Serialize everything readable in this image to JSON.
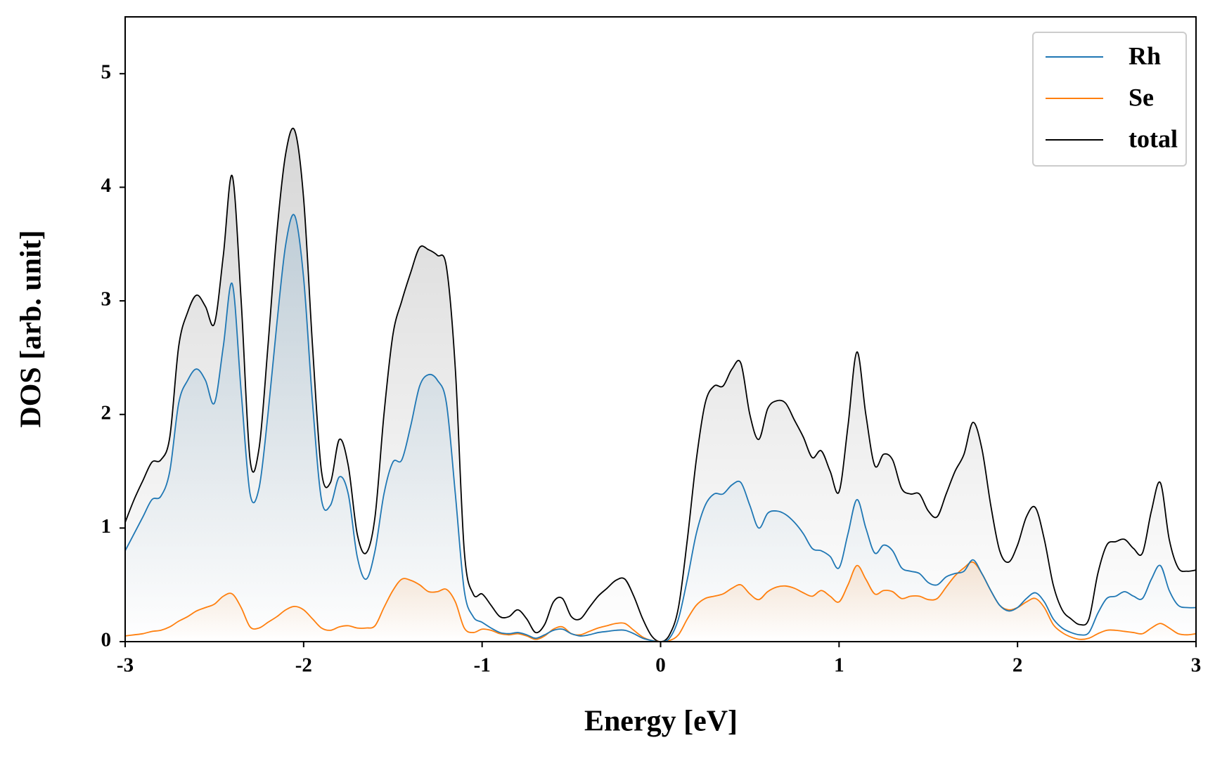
{
  "chart_data": {
    "type": "line",
    "xlabel": "Energy [eV]",
    "ylabel": "DOS [arb. unit]",
    "x": [
      -3.0,
      -2.95,
      -2.9,
      -2.85,
      -2.8,
      -2.75,
      -2.7,
      -2.65,
      -2.6,
      -2.55,
      -2.5,
      -2.45,
      -2.4,
      -2.35,
      -2.3,
      -2.25,
      -2.2,
      -2.15,
      -2.1,
      -2.05,
      -2.0,
      -1.95,
      -1.9,
      -1.85,
      -1.8,
      -1.75,
      -1.7,
      -1.65,
      -1.6,
      -1.55,
      -1.5,
      -1.45,
      -1.4,
      -1.35,
      -1.3,
      -1.25,
      -1.2,
      -1.15,
      -1.1,
      -1.05,
      -1.0,
      -0.95,
      -0.9,
      -0.85,
      -0.8,
      -0.75,
      -0.7,
      -0.65,
      -0.6,
      -0.55,
      -0.5,
      -0.45,
      -0.4,
      -0.35,
      -0.3,
      -0.25,
      -0.2,
      -0.15,
      -0.1,
      -0.05,
      0.0,
      0.05,
      0.1,
      0.15,
      0.2,
      0.25,
      0.3,
      0.35,
      0.4,
      0.45,
      0.5,
      0.55,
      0.6,
      0.65,
      0.7,
      0.75,
      0.8,
      0.85,
      0.9,
      0.95,
      1.0,
      1.05,
      1.1,
      1.15,
      1.2,
      1.25,
      1.3,
      1.35,
      1.4,
      1.45,
      1.5,
      1.55,
      1.6,
      1.65,
      1.7,
      1.75,
      1.8,
      1.85,
      1.9,
      1.95,
      2.0,
      2.05,
      2.1,
      2.15,
      2.2,
      2.25,
      2.3,
      2.35,
      2.4,
      2.45,
      2.5,
      2.55,
      2.6,
      2.65,
      2.7,
      2.75,
      2.8,
      2.85,
      2.9,
      2.95,
      3.0
    ],
    "series": [
      {
        "name": "Rh",
        "color": "#1f77b4",
        "values": [
          0.8,
          0.95,
          1.1,
          1.25,
          1.28,
          1.5,
          2.1,
          2.3,
          2.4,
          2.3,
          2.1,
          2.6,
          3.15,
          2.2,
          1.3,
          1.35,
          2.0,
          2.8,
          3.5,
          3.75,
          3.2,
          2.1,
          1.25,
          1.2,
          1.45,
          1.3,
          0.75,
          0.55,
          0.8,
          1.3,
          1.58,
          1.6,
          1.9,
          2.25,
          2.35,
          2.3,
          2.1,
          1.3,
          0.45,
          0.22,
          0.17,
          0.12,
          0.08,
          0.07,
          0.08,
          0.06,
          0.03,
          0.06,
          0.1,
          0.11,
          0.07,
          0.05,
          0.06,
          0.08,
          0.09,
          0.1,
          0.1,
          0.07,
          0.03,
          0.01,
          0.0,
          0.03,
          0.2,
          0.55,
          0.95,
          1.2,
          1.3,
          1.3,
          1.38,
          1.4,
          1.2,
          1.0,
          1.13,
          1.15,
          1.12,
          1.05,
          0.95,
          0.82,
          0.8,
          0.75,
          0.65,
          0.95,
          1.25,
          1.0,
          0.78,
          0.85,
          0.8,
          0.65,
          0.62,
          0.6,
          0.52,
          0.5,
          0.57,
          0.6,
          0.62,
          0.72,
          0.6,
          0.45,
          0.32,
          0.27,
          0.3,
          0.38,
          0.43,
          0.35,
          0.2,
          0.12,
          0.08,
          0.06,
          0.08,
          0.25,
          0.38,
          0.4,
          0.44,
          0.4,
          0.38,
          0.55,
          0.67,
          0.45,
          0.32,
          0.3,
          0.3
        ]
      },
      {
        "name": "Se",
        "color": "#ff7f0e",
        "values": [
          0.05,
          0.06,
          0.07,
          0.09,
          0.1,
          0.13,
          0.18,
          0.22,
          0.27,
          0.3,
          0.33,
          0.4,
          0.42,
          0.3,
          0.13,
          0.12,
          0.17,
          0.22,
          0.28,
          0.31,
          0.28,
          0.2,
          0.12,
          0.1,
          0.13,
          0.14,
          0.12,
          0.12,
          0.14,
          0.3,
          0.45,
          0.55,
          0.54,
          0.5,
          0.44,
          0.44,
          0.46,
          0.35,
          0.12,
          0.08,
          0.11,
          0.1,
          0.07,
          0.06,
          0.07,
          0.05,
          0.02,
          0.05,
          0.11,
          0.13,
          0.07,
          0.06,
          0.09,
          0.12,
          0.14,
          0.16,
          0.16,
          0.1,
          0.04,
          0.01,
          0.0,
          0.01,
          0.06,
          0.2,
          0.32,
          0.38,
          0.4,
          0.42,
          0.47,
          0.5,
          0.42,
          0.37,
          0.44,
          0.48,
          0.49,
          0.47,
          0.43,
          0.4,
          0.45,
          0.4,
          0.35,
          0.5,
          0.67,
          0.55,
          0.42,
          0.45,
          0.44,
          0.38,
          0.4,
          0.4,
          0.37,
          0.38,
          0.48,
          0.58,
          0.65,
          0.7,
          0.6,
          0.45,
          0.32,
          0.28,
          0.3,
          0.35,
          0.38,
          0.3,
          0.15,
          0.08,
          0.04,
          0.02,
          0.03,
          0.07,
          0.1,
          0.1,
          0.09,
          0.08,
          0.07,
          0.12,
          0.16,
          0.12,
          0.07,
          0.06,
          0.07
        ]
      },
      {
        "name": "total",
        "color": "#000000",
        "values": [
          1.05,
          1.25,
          1.42,
          1.58,
          1.6,
          1.8,
          2.6,
          2.9,
          3.05,
          2.95,
          2.8,
          3.4,
          4.1,
          3.0,
          1.6,
          1.7,
          2.6,
          3.6,
          4.3,
          4.5,
          3.9,
          2.6,
          1.5,
          1.4,
          1.78,
          1.55,
          0.95,
          0.78,
          1.1,
          2.0,
          2.7,
          3.0,
          3.25,
          3.47,
          3.45,
          3.4,
          3.3,
          2.4,
          0.8,
          0.42,
          0.42,
          0.32,
          0.22,
          0.22,
          0.28,
          0.2,
          0.08,
          0.15,
          0.35,
          0.38,
          0.22,
          0.2,
          0.3,
          0.4,
          0.47,
          0.54,
          0.55,
          0.4,
          0.2,
          0.05,
          0.0,
          0.06,
          0.3,
          0.9,
          1.6,
          2.1,
          2.25,
          2.25,
          2.4,
          2.45,
          2.0,
          1.78,
          2.05,
          2.12,
          2.1,
          1.95,
          1.8,
          1.62,
          1.68,
          1.5,
          1.32,
          1.9,
          2.55,
          2.0,
          1.55,
          1.65,
          1.6,
          1.35,
          1.3,
          1.3,
          1.15,
          1.1,
          1.3,
          1.5,
          1.65,
          1.93,
          1.7,
          1.2,
          0.8,
          0.7,
          0.85,
          1.1,
          1.18,
          0.9,
          0.5,
          0.28,
          0.2,
          0.15,
          0.2,
          0.6,
          0.85,
          0.88,
          0.9,
          0.82,
          0.78,
          1.15,
          1.4,
          0.9,
          0.65,
          0.62,
          0.63
        ]
      }
    ],
    "xlim": [
      -3,
      3
    ],
    "ylim": [
      0,
      5.5
    ],
    "xticks": [
      -3,
      -2,
      -1,
      0,
      1,
      2,
      3
    ],
    "yticks": [
      0,
      1,
      2,
      3,
      4,
      5
    ],
    "legend": "upper right",
    "fill": true
  }
}
